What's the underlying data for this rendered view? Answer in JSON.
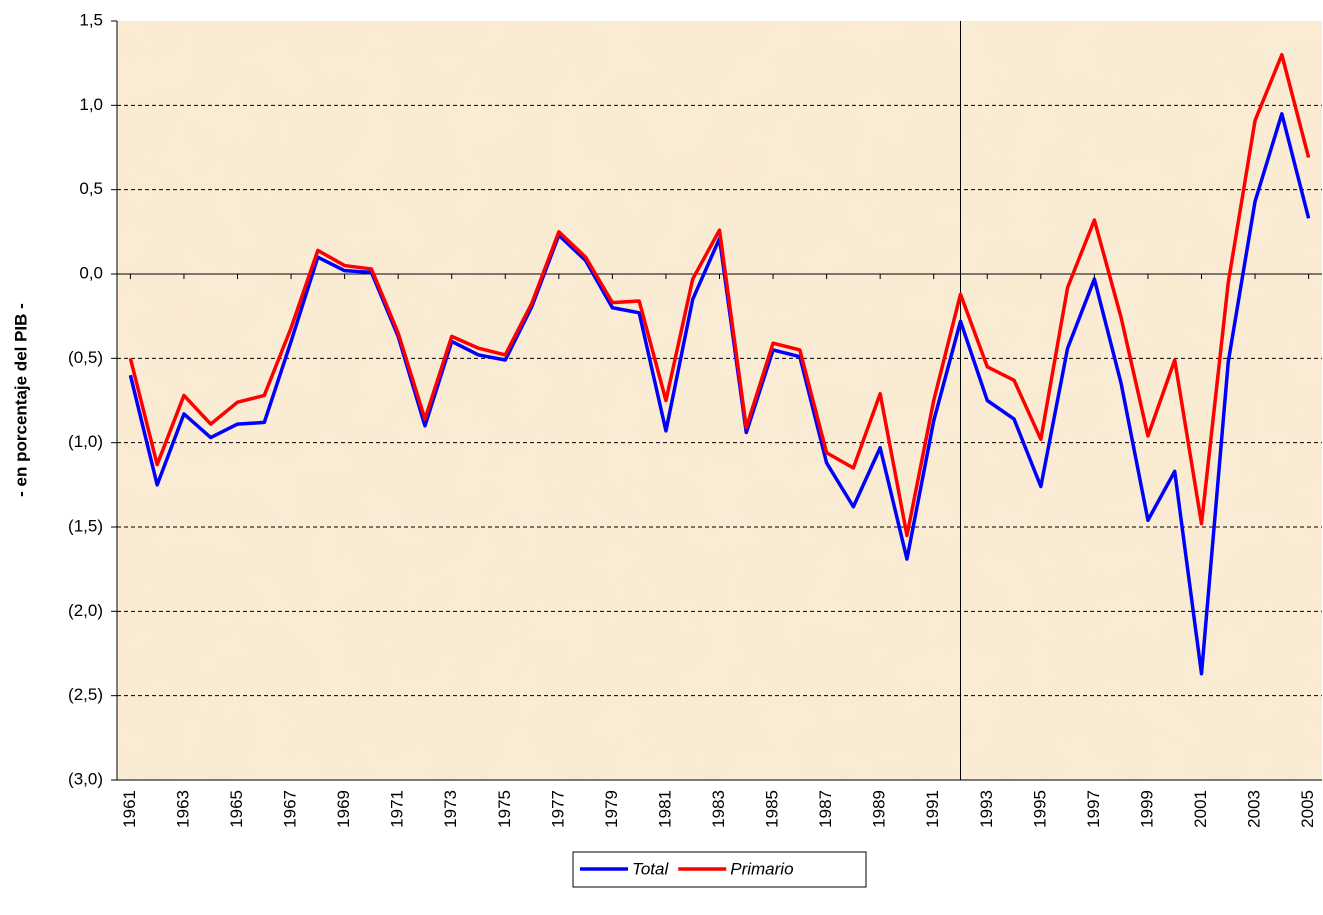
{
  "chart_data": {
    "type": "line",
    "ylabel": "- en porcentaje del PIB -",
    "x": [
      1961,
      1962,
      1963,
      1964,
      1965,
      1966,
      1967,
      1968,
      1969,
      1970,
      1971,
      1972,
      1973,
      1974,
      1975,
      1976,
      1977,
      1978,
      1979,
      1980,
      1981,
      1982,
      1983,
      1984,
      1985,
      1986,
      1987,
      1988,
      1989,
      1990,
      1991,
      1992,
      1993,
      1994,
      1995,
      1996,
      1997,
      1998,
      1999,
      2000,
      2001,
      2002,
      2003,
      2004,
      2005
    ],
    "xlim": [
      1960.5,
      2005.5
    ],
    "xticks": [
      1961,
      1963,
      1965,
      1967,
      1969,
      1971,
      1973,
      1975,
      1977,
      1979,
      1981,
      1983,
      1985,
      1987,
      1989,
      1991,
      1993,
      1995,
      1997,
      1999,
      2001,
      2003,
      2005
    ],
    "vlines": [
      1992
    ],
    "ylim": [
      -3.0,
      1.5
    ],
    "yticks": [
      {
        "value": 1.5,
        "label": "1,5"
      },
      {
        "value": 1.0,
        "label": "1,0"
      },
      {
        "value": 0.5,
        "label": "0,5"
      },
      {
        "value": 0.0,
        "label": "0,0"
      },
      {
        "value": -0.5,
        "label": "(0,5)"
      },
      {
        "value": -1.0,
        "label": "(1,0)"
      },
      {
        "value": -1.5,
        "label": "(1,5)"
      },
      {
        "value": -2.0,
        "label": "(2,0)"
      },
      {
        "value": -2.5,
        "label": "(2,5)"
      },
      {
        "value": -3.0,
        "label": "(3,0)"
      }
    ],
    "grid": true,
    "legend": "bottom",
    "series": [
      {
        "name": "Total",
        "color": "#0000ff",
        "values": [
          -0.6,
          -1.25,
          -0.83,
          -0.97,
          -0.89,
          -0.88,
          -0.4,
          0.1,
          0.02,
          0.01,
          -0.37,
          -0.9,
          -0.4,
          -0.48,
          -0.51,
          -0.19,
          0.23,
          0.08,
          -0.2,
          -0.23,
          -0.93,
          -0.15,
          0.21,
          -0.94,
          -0.45,
          -0.49,
          -1.12,
          -1.38,
          -1.03,
          -1.69,
          -0.87,
          -0.28,
          -0.75,
          -0.86,
          -1.26,
          -0.44,
          -0.03,
          -0.65,
          -1.46,
          -1.17,
          -2.37,
          -0.52,
          0.43,
          0.95,
          0.33
        ]
      },
      {
        "name": "Primario",
        "color": "#ff0000",
        "values": [
          -0.5,
          -1.13,
          -0.72,
          -0.89,
          -0.76,
          -0.72,
          -0.32,
          0.14,
          0.05,
          0.03,
          -0.35,
          -0.86,
          -0.37,
          -0.44,
          -0.48,
          -0.17,
          0.25,
          0.1,
          -0.17,
          -0.16,
          -0.75,
          -0.03,
          0.26,
          -0.91,
          -0.41,
          -0.45,
          -1.06,
          -1.15,
          -0.71,
          -1.55,
          -0.75,
          -0.12,
          -0.55,
          -0.63,
          -0.98,
          -0.08,
          0.32,
          -0.26,
          -0.96,
          -0.51,
          -1.48,
          -0.05,
          0.91,
          1.3,
          0.69
        ]
      }
    ]
  }
}
